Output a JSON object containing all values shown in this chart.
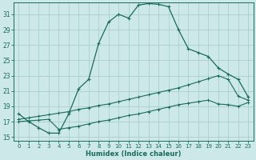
{
  "xlabel": "Humidex (Indice chaleur)",
  "background_color": "#cce8e8",
  "grid_color": "#aacece",
  "line_color": "#1a6b5a",
  "xlim": [
    -0.5,
    23.5
  ],
  "ylim": [
    14.5,
    32.5
  ],
  "xticks": [
    0,
    1,
    2,
    3,
    4,
    5,
    6,
    7,
    8,
    9,
    10,
    11,
    12,
    13,
    14,
    15,
    16,
    17,
    18,
    19,
    20,
    21,
    22,
    23
  ],
  "yticks": [
    15,
    17,
    19,
    21,
    23,
    25,
    27,
    29,
    31
  ],
  "curve1_x": [
    0,
    1,
    2,
    3,
    4,
    5,
    6,
    7,
    8,
    9,
    10,
    11,
    12,
    13,
    14,
    15,
    16,
    17,
    18,
    19,
    20,
    21,
    22,
    23
  ],
  "curve1_y": [
    18.0,
    17.0,
    16.2,
    15.5,
    15.5,
    18.0,
    21.3,
    22.5,
    27.2,
    30.0,
    31.0,
    30.5,
    32.2,
    32.4,
    32.3,
    32.0,
    29.0,
    26.5,
    26.0,
    25.5,
    24.0,
    23.2,
    22.5,
    20.2
  ],
  "curve2_x": [
    0,
    1,
    2,
    3,
    4,
    5,
    6,
    7,
    8,
    9,
    10,
    11,
    12,
    13,
    14,
    15,
    16,
    17,
    18,
    19,
    20,
    21,
    22,
    23
  ],
  "curve2_y": [
    17.3,
    17.5,
    17.7,
    17.9,
    18.1,
    18.3,
    18.6,
    18.8,
    19.1,
    19.3,
    19.6,
    19.9,
    20.2,
    20.5,
    20.8,
    21.1,
    21.4,
    21.8,
    22.2,
    22.6,
    23.0,
    22.5,
    20.3,
    19.8
  ],
  "curve3_x": [
    0,
    1,
    2,
    3,
    4,
    5,
    6,
    7,
    8,
    9,
    10,
    11,
    12,
    13,
    14,
    15,
    16,
    17,
    18,
    19,
    20,
    21,
    22,
    23
  ],
  "curve3_y": [
    17.0,
    17.1,
    17.2,
    17.3,
    16.0,
    16.2,
    16.4,
    16.7,
    17.0,
    17.2,
    17.5,
    17.8,
    18.0,
    18.3,
    18.6,
    18.9,
    19.2,
    19.4,
    19.6,
    19.8,
    19.3,
    19.2,
    19.0,
    19.5
  ]
}
